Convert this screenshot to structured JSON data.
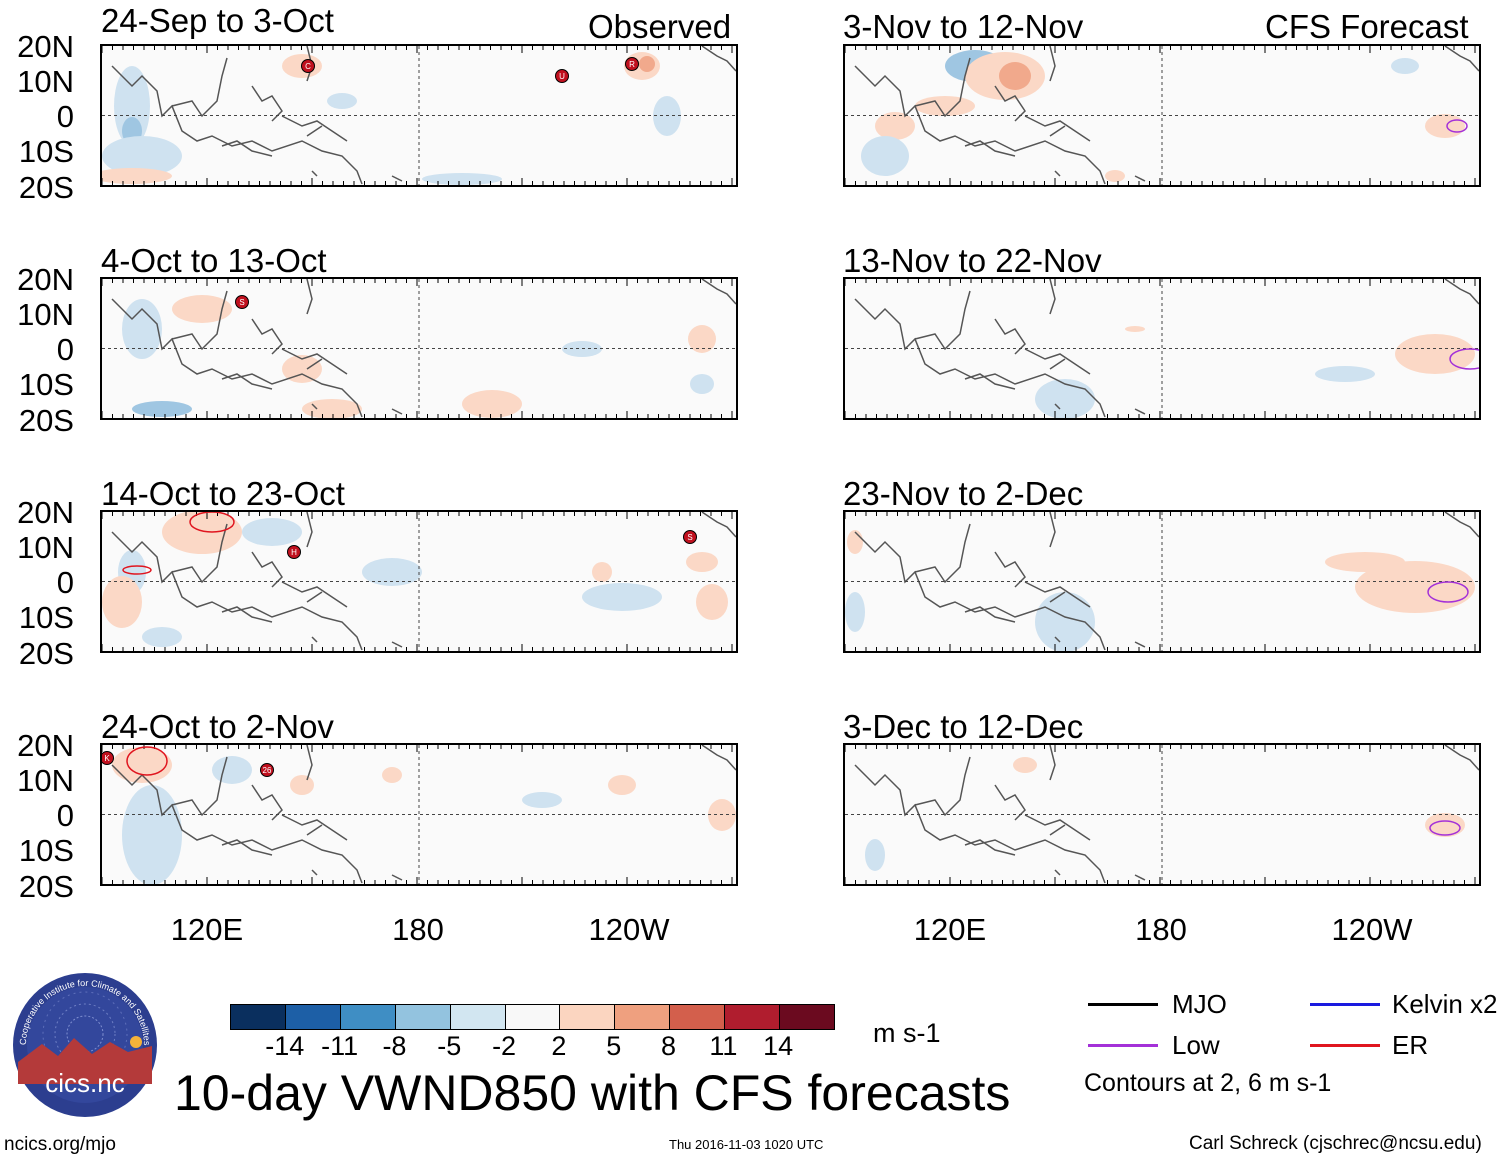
{
  "headers": {
    "observed": "Observed",
    "forecast": "CFS Forecast"
  },
  "y_axis_labels": [
    "20N",
    "10N",
    "0",
    "10S",
    "20S"
  ],
  "x_axis_labels": [
    "120E",
    "180",
    "120W"
  ],
  "observed_panels": [
    {
      "title": "24-Sep to 3-Oct",
      "storms": [
        "C",
        "U",
        "R"
      ]
    },
    {
      "title": "4-Oct to 13-Oct",
      "storms": [
        "S"
      ]
    },
    {
      "title": "14-Oct to 23-Oct",
      "storms": [
        "H",
        "S"
      ]
    },
    {
      "title": "24-Oct to 2-Nov",
      "storms": [
        "K",
        "26"
      ]
    }
  ],
  "forecast_panels": [
    {
      "title": "3-Nov to 12-Nov"
    },
    {
      "title": "13-Nov to 22-Nov"
    },
    {
      "title": "23-Nov to 2-Dec"
    },
    {
      "title": "3-Dec to 12-Dec"
    }
  ],
  "colorbar": {
    "ticks": [
      "-14",
      "-11",
      "-8",
      "-5",
      "-2",
      "2",
      "5",
      "8",
      "11",
      "14"
    ],
    "colors": [
      "#0a2f5e",
      "#1d5fa6",
      "#3f8ec4",
      "#93c3df",
      "#d2e6f1",
      "#f8f8f8",
      "#fbd5c0",
      "#efa07f",
      "#d35f4c",
      "#b01d2e",
      "#6b0a1f"
    ],
    "units": "m s-1"
  },
  "legend": {
    "mjo": "MJO",
    "kelvin": "Kelvin x2",
    "low": "Low",
    "er": "ER",
    "contours_note": "Contours at 2, 6 m s-1",
    "colors": {
      "mjo": "#000000",
      "kelvin": "#1a1adf",
      "low": "#a431d8",
      "er": "#e0151f"
    }
  },
  "main_title": "10-day VWND850 with CFS forecasts",
  "logo_text": "cics.nc",
  "logo_ring_text": "Cooperative Institute for Climate and Satellites",
  "footer": {
    "url": "ncics.org/mjo",
    "timestamp": "Thu 2016-11-03 1020 UTC",
    "credit": "Carl Schreck (cjschrec@ncsu.edu)"
  }
}
